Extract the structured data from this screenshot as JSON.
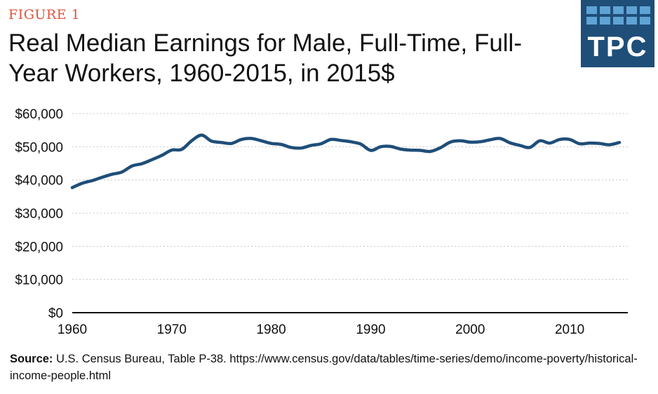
{
  "figure_label": "FIGURE 1",
  "logo_text": "TPC",
  "source_label": "Source:",
  "source_text": " U.S. Census Bureau, Table P-38. https://www.census.gov/data/tables/time-series/demo/income-poverty/historical-income-people.html",
  "colors": {
    "line": "#1f4e79",
    "grid": "#c8c8c8",
    "figure_label": "#e0533a",
    "logo_bg": "#1f4e79",
    "logo_squares": "#5fa3d4"
  },
  "chart_data": {
    "type": "line",
    "title": "Real Median Earnings for Male, Full-Time, Full-Year Workers, 1960-2015, in 2015$",
    "xlabel": "",
    "ylabel": "",
    "xlim": [
      1960,
      2015
    ],
    "ylim": [
      0,
      60000
    ],
    "x_ticks": [
      "1960",
      "1970",
      "1980",
      "1990",
      "2000",
      "2010"
    ],
    "y_ticks": [
      "$0",
      "$10,000",
      "$20,000",
      "$30,000",
      "$40,000",
      "$50,000",
      "$60,000"
    ],
    "grid": true,
    "series": [
      {
        "x": [
          1960,
          1961,
          1962,
          1963,
          1964,
          1965,
          1966,
          1967,
          1968,
          1969,
          1970,
          1971,
          1972,
          1973,
          1974,
          1975,
          1976,
          1977,
          1978,
          1979,
          1980,
          1981,
          1982,
          1983,
          1984,
          1985,
          1986,
          1987,
          1988,
          1989,
          1990,
          1991,
          1992,
          1993,
          1994,
          1995,
          1996,
          1997,
          1998,
          1999,
          2000,
          2001,
          2002,
          2003,
          2004,
          2005,
          2006,
          2007,
          2008,
          2009,
          2010,
          2011,
          2012,
          2013,
          2014,
          2015
        ],
        "values": [
          37700,
          39000,
          39800,
          40800,
          41700,
          42400,
          44200,
          44900,
          46100,
          47400,
          49000,
          49200,
          51800,
          53500,
          51700,
          51300,
          51000,
          52200,
          52500,
          51800,
          51000,
          50700,
          49800,
          49600,
          50400,
          50900,
          52200,
          51900,
          51500,
          50800,
          48900,
          50000,
          50100,
          49300,
          49000,
          48900,
          48600,
          49700,
          51400,
          51800,
          51400,
          51500,
          52100,
          52500,
          51200,
          50400,
          49800,
          51800,
          51100,
          52200,
          52200,
          50900,
          51100,
          51000,
          50600,
          51300
        ]
      }
    ]
  }
}
